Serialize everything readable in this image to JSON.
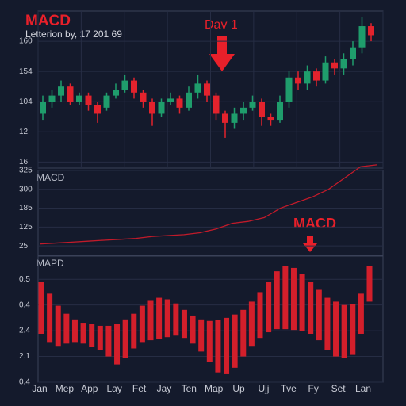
{
  "chart_data": [
    {
      "type": "candlestick",
      "title": "MACD",
      "subtitle": "Letterion by, 17 201 69",
      "annotation": "Dav 1",
      "open": [
        1.6,
        2.0,
        2.2,
        2.5,
        2.0,
        2.2,
        1.9,
        1.8,
        2.2,
        2.4,
        2.7,
        2.3,
        2.0,
        1.6,
        2.0,
        2.1,
        1.8,
        2.3,
        2.6,
        2.2,
        1.6,
        1.3,
        1.6,
        1.8,
        2.0,
        1.5,
        1.4,
        2.0,
        2.8,
        2.6,
        3.0,
        2.7,
        3.3,
        3.1,
        3.4,
        3.8,
        4.5
      ],
      "close": [
        2.0,
        2.2,
        2.5,
        2.0,
        2.2,
        1.9,
        1.6,
        2.2,
        2.4,
        2.7,
        2.3,
        2.0,
        1.6,
        2.0,
        2.1,
        1.8,
        2.3,
        2.6,
        2.2,
        1.6,
        1.3,
        1.6,
        1.8,
        2.0,
        1.5,
        1.4,
        2.0,
        2.8,
        2.6,
        3.0,
        2.7,
        3.3,
        3.1,
        3.4,
        3.8,
        4.5,
        4.2
      ],
      "high": [
        2.2,
        2.4,
        2.7,
        2.6,
        2.3,
        2.3,
        2.0,
        2.3,
        2.6,
        2.9,
        2.8,
        2.4,
        2.1,
        2.1,
        2.3,
        2.2,
        2.5,
        2.9,
        2.7,
        2.3,
        1.7,
        1.8,
        2.0,
        2.2,
        2.1,
        1.6,
        2.2,
        3.0,
        3.0,
        3.2,
        3.1,
        3.5,
        3.4,
        3.6,
        4.0,
        4.8,
        4.6
      ],
      "low": [
        1.4,
        1.8,
        2.0,
        1.9,
        1.9,
        1.7,
        1.3,
        1.7,
        2.1,
        2.3,
        2.1,
        1.8,
        1.2,
        1.5,
        1.9,
        1.6,
        1.7,
        2.1,
        2.0,
        1.4,
        0.8,
        1.1,
        1.4,
        1.7,
        1.2,
        1.2,
        1.3,
        1.8,
        2.4,
        2.4,
        2.5,
        2.6,
        2.9,
        2.9,
        3.2,
        3.6,
        4.0
      ],
      "up_color": "#1f9d6c",
      "down_color": "#e3232d",
      "ylim": [
        -0.2,
        5.0
      ],
      "yticks": [
        {
          "value": 4,
          "label": "160"
        },
        {
          "value": 3,
          "label": "154"
        },
        {
          "value": 2,
          "label": "104"
        },
        {
          "value": 1,
          "label": "12"
        },
        {
          "value": 0,
          "label": "16"
        }
      ],
      "grid": true
    },
    {
      "type": "line",
      "title": "MACD",
      "annotation": "MACD",
      "values": [
        0.1,
        0.15,
        0.2,
        0.25,
        0.3,
        0.35,
        0.4,
        0.5,
        0.55,
        0.6,
        0.7,
        0.9,
        1.2,
        1.3,
        1.5,
        2.0,
        2.3,
        2.6,
        3.0,
        3.6,
        4.2,
        4.3
      ],
      "color": "#c21a2a",
      "ylim": [
        -0.5,
        4.0
      ],
      "yticks": [
        {
          "value": 4,
          "label": "325"
        },
        {
          "value": 3,
          "label": "300"
        },
        {
          "value": 2,
          "label": "185"
        },
        {
          "value": 1,
          "label": "125"
        },
        {
          "value": 0,
          "label": "25"
        }
      ],
      "grid": true
    },
    {
      "type": "range-bar",
      "title": "MAPD",
      "color": "#d31f2b",
      "categories": [
        "Jan",
        "Mep",
        "App",
        "Lay",
        "Fet",
        "Jay",
        "Ten",
        "Map",
        "Up",
        "Ujj",
        "Tve",
        "Fy",
        "Set",
        "Lan"
      ],
      "high": [
        3.91,
        3.44,
        2.97,
        2.66,
        2.44,
        2.31,
        2.25,
        2.19,
        2.19,
        2.25,
        2.44,
        2.66,
        2.97,
        3.19,
        3.28,
        3.22,
        3.06,
        2.81,
        2.59,
        2.44,
        2.38,
        2.41,
        2.5,
        2.63,
        2.81,
        3.13,
        3.5,
        3.91,
        4.31,
        4.5,
        4.44,
        4.22,
        3.91,
        3.59,
        3.28,
        3.13,
        3.0,
        3.03,
        3.44,
        4.53
      ],
      "low": [
        1.88,
        1.56,
        1.41,
        1.5,
        1.56,
        1.5,
        1.38,
        1.25,
        1.0,
        0.69,
        0.94,
        1.31,
        1.56,
        1.63,
        1.69,
        1.75,
        1.81,
        1.72,
        1.5,
        1.19,
        0.78,
        0.38,
        0.31,
        0.56,
        1.0,
        1.41,
        1.72,
        1.94,
        2.06,
        2.06,
        2.03,
        2.0,
        1.88,
        1.63,
        1.25,
        1.0,
        0.94,
        1.06,
        1.88,
        3.13
      ],
      "ylim": [
        0,
        4.9
      ],
      "yticks": [
        {
          "value": 4,
          "label": "0.5"
        },
        {
          "value": 3,
          "label": "0.4"
        },
        {
          "value": 2,
          "label": "2.4"
        },
        {
          "value": 1,
          "label": "2.1"
        },
        {
          "value": 0,
          "label": "0.4"
        }
      ],
      "grid": true
    }
  ]
}
